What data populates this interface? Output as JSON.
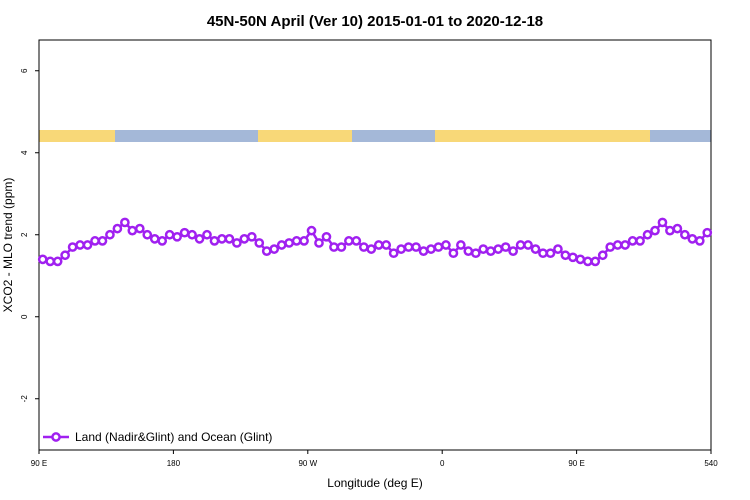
{
  "chart_data": {
    "type": "line",
    "title": "45N-50N April (Ver 10)   2015-01-01 to 2020-12-18",
    "xlabel": "Longitude (deg E)",
    "ylabel": "XCO2 - MLO trend (ppm)",
    "xlim": [
      90,
      540
    ],
    "ylim": [
      -3.25,
      6.75
    ],
    "xticks": [
      {
        "value": 90,
        "label": "90 E"
      },
      180,
      {
        "value": 270,
        "label": "90 W"
      },
      {
        "value": 360,
        "label": "0"
      },
      {
        "value": 450,
        "label": "90 E"
      },
      540
    ],
    "yticks": [
      -2,
      0,
      2,
      4,
      6
    ],
    "legend": "bottom-left",
    "x": [
      92.5,
      97.5,
      102.5,
      107.5,
      112.5,
      117.5,
      122.5,
      127.5,
      132.5,
      137.5,
      142.5,
      147.5,
      152.5,
      157.5,
      162.5,
      167.5,
      172.5,
      177.5,
      182.5,
      187.5,
      192.5,
      197.5,
      202.5,
      207.5,
      212.5,
      217.5,
      222.5,
      227.5,
      232.5,
      237.5,
      242.5,
      247.5,
      252.5,
      257.5,
      262.5,
      267.5,
      272.5,
      277.5,
      282.5,
      287.5,
      292.5,
      297.5,
      302.5,
      307.5,
      312.5,
      317.5,
      322.5,
      327.5,
      332.5,
      337.5,
      342.5,
      347.5,
      352.5,
      357.5,
      362.5,
      367.5,
      372.5,
      377.5,
      382.5,
      387.5,
      392.5,
      397.5,
      402.5,
      407.5,
      412.5,
      417.5,
      422.5,
      427.5,
      432.5,
      437.5,
      442.5,
      447.5,
      452.5,
      457.5,
      462.5,
      467.5,
      472.5,
      477.5,
      482.5,
      487.5,
      492.5,
      497.5,
      502.5,
      507.5,
      512.5,
      517.5,
      522.5,
      527.5,
      532.5,
      537.5
    ],
    "series": [
      {
        "name": "Land (Nadir&Glint) and Ocean (Glint)",
        "color": "#a020f0",
        "values": [
          1.4,
          1.35,
          1.35,
          1.5,
          1.7,
          1.75,
          1.75,
          1.85,
          1.85,
          2.0,
          2.15,
          2.3,
          2.1,
          2.15,
          2.0,
          1.9,
          1.85,
          2.0,
          1.95,
          2.05,
          2.0,
          1.9,
          2.0,
          1.85,
          1.9,
          1.9,
          1.8,
          1.9,
          1.95,
          1.8,
          1.6,
          1.65,
          1.75,
          1.8,
          1.85,
          1.85,
          2.1,
          1.8,
          1.95,
          1.7,
          1.7,
          1.85,
          1.85,
          1.7,
          1.65,
          1.75,
          1.75,
          1.55,
          1.65,
          1.7,
          1.7,
          1.6,
          1.65,
          1.7,
          1.75,
          1.55,
          1.75,
          1.6,
          1.55,
          1.65,
          1.6,
          1.65,
          1.7,
          1.6,
          1.75,
          1.75,
          1.65,
          1.55,
          1.55,
          1.65,
          1.5,
          1.45,
          1.4,
          1.35,
          1.35,
          1.5,
          1.7,
          1.75,
          1.75,
          1.85,
          1.85,
          2.0,
          2.1,
          2.3,
          2.1,
          2.15,
          2.0,
          1.9,
          1.85,
          2.05
        ]
      }
    ]
  }
}
